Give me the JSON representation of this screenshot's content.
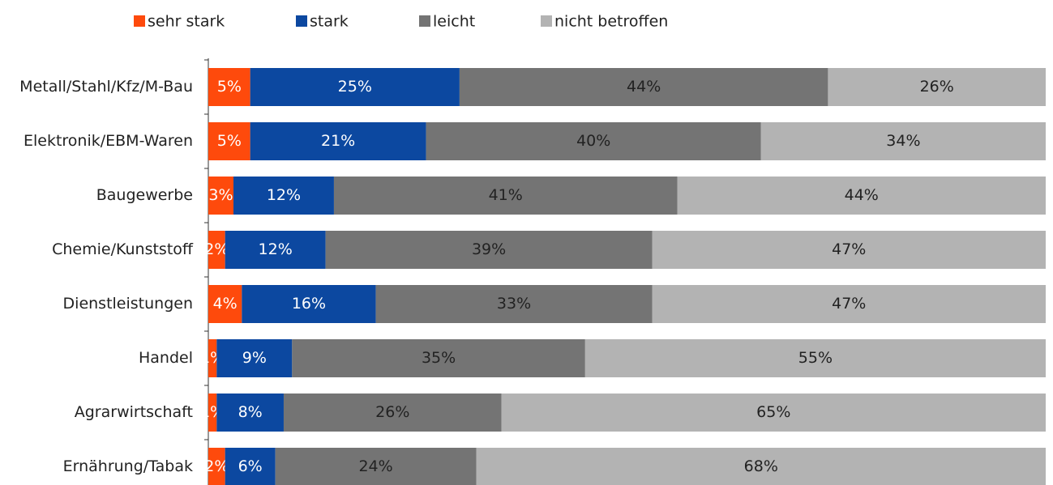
{
  "chart_data": {
    "type": "stacked-bar-horizontal",
    "categories": [
      "Metall/Stahl/Kfz/M-Bau",
      "Elektronik/EBM-Waren",
      "Baugewerbe",
      "Chemie/Kunststoff",
      "Dienstleistungen",
      "Handel",
      "Agrarwirtschaft",
      "Ernährung/Tabak"
    ],
    "series": [
      {
        "name": "sehr stark",
        "color": "#fe4a0c",
        "values": [
          5,
          5,
          3,
          2,
          4,
          1,
          1,
          2
        ],
        "value_labels": [
          "5%",
          "5%",
          "3%",
          "2%",
          "4%",
          "1%",
          "1%",
          "2%"
        ]
      },
      {
        "name": "stark",
        "color": "#0c48a0",
        "values": [
          25,
          21,
          12,
          12,
          16,
          9,
          8,
          6
        ],
        "value_labels": [
          "25%",
          "21%",
          "12%",
          "12%",
          "16%",
          "9%",
          "8%",
          "6%"
        ]
      },
      {
        "name": "leicht",
        "color": "#747474",
        "values": [
          44,
          40,
          41,
          39,
          33,
          35,
          26,
          24
        ],
        "value_labels": [
          "44%",
          "40%",
          "41%",
          "39%",
          "33%",
          "35%",
          "26%",
          "24%"
        ]
      },
      {
        "name": "nicht betroffen",
        "color": "#b3b3b3",
        "values": [
          26,
          34,
          44,
          47,
          47,
          55,
          65,
          68
        ],
        "value_labels": [
          "26%",
          "34%",
          "44%",
          "47%",
          "47%",
          "55%",
          "65%",
          "68%"
        ]
      }
    ],
    "xlim": [
      0,
      100
    ],
    "legend": "top"
  }
}
